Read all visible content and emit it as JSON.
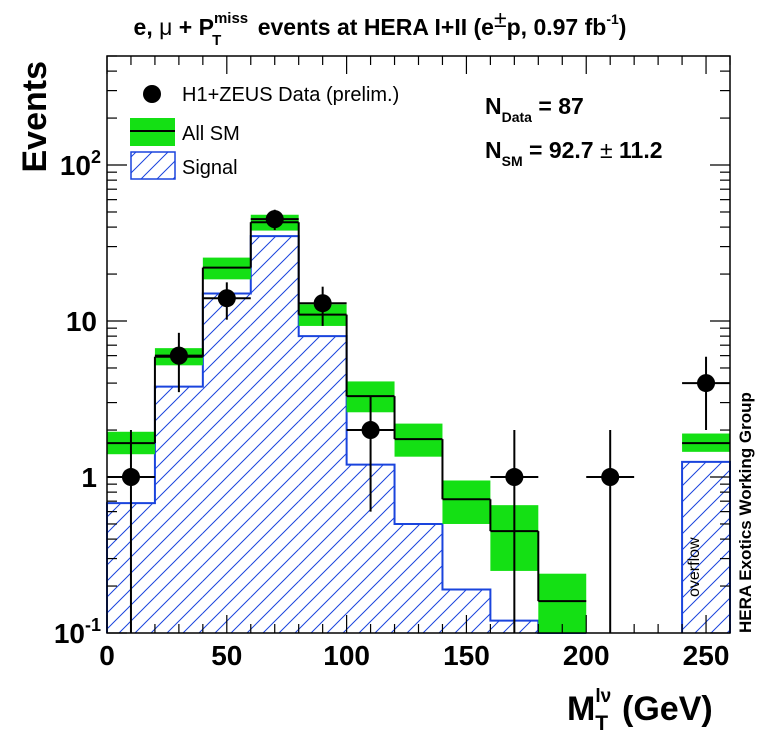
{
  "chart_data": {
    "type": "bar",
    "title": {
      "pre": "e,",
      "mu": "μ",
      "plus": " + P",
      "sup": "miss",
      "sub": "T",
      "post": " events at HERA I+II (e",
      "pm": "±",
      "post2": "p, 0.97 fb",
      "sup2": "-1",
      "close": ")"
    },
    "ylabel": "Events",
    "xlabel": {
      "main": "M",
      "sup": "lν",
      "sub": "T",
      "unit": "(GeV)"
    },
    "yscale": "log",
    "ylim": [
      0.1,
      500
    ],
    "xlim": [
      0,
      260
    ],
    "x_ticks": [
      {
        "value": 0,
        "label": "0"
      },
      {
        "value": 50,
        "label": "50"
      },
      {
        "value": 100,
        "label": "100"
      },
      {
        "value": 150,
        "label": "150"
      },
      {
        "value": 200,
        "label": "200"
      },
      {
        "value": 250,
        "label": "250"
      }
    ],
    "y_ticks": [
      {
        "value": 0.1,
        "base": "10",
        "exp": "-1"
      },
      {
        "value": 1,
        "base": "1",
        "exp": ""
      },
      {
        "value": 10,
        "base": "10",
        "exp": ""
      },
      {
        "value": 100,
        "base": "10",
        "exp": "2"
      }
    ],
    "bins": [
      [
        0,
        20
      ],
      [
        20,
        40
      ],
      [
        40,
        60
      ],
      [
        60,
        80
      ],
      [
        80,
        100
      ],
      [
        100,
        120
      ],
      [
        120,
        140
      ],
      [
        140,
        160
      ],
      [
        160,
        180
      ],
      [
        180,
        200
      ],
      [
        240,
        260
      ]
    ],
    "series": [
      {
        "name": "All SM",
        "kind": "line_band",
        "color": "#000000",
        "band_color": "#14e014",
        "values": [
          1.65,
          5.9,
          22.0,
          43.0,
          11.0,
          3.3,
          1.75,
          0.72,
          0.45,
          0.16,
          1.65
        ],
        "band_low": [
          1.4,
          5.2,
          18.5,
          38.0,
          9.3,
          2.6,
          1.35,
          0.5,
          0.25,
          0.1,
          1.45
        ],
        "band_high": [
          1.95,
          6.7,
          25.5,
          48.0,
          12.8,
          4.1,
          2.2,
          0.95,
          0.66,
          0.24,
          1.9
        ]
      },
      {
        "name": "Signal",
        "kind": "hatched",
        "color": "#1a44dd",
        "values": [
          0.68,
          3.8,
          15.0,
          35.0,
          8.0,
          1.2,
          0.5,
          0.19,
          0.12,
          0.1,
          1.25
        ]
      },
      {
        "name": "H1+ZEUS Data (prelim.)",
        "kind": "points",
        "color": "#000000",
        "x": [
          10,
          30,
          50,
          70,
          90,
          110,
          170,
          210,
          250
        ],
        "y": [
          1,
          6,
          14,
          45,
          13,
          2,
          1,
          1,
          4
        ],
        "err_low": [
          0.9,
          2.5,
          3.8,
          6.7,
          3.7,
          1.4,
          0.9,
          0.9,
          2.0
        ],
        "err_high": [
          1.0,
          2.4,
          3.7,
          6.7,
          3.6,
          1.3,
          1.0,
          1.0,
          1.9
        ],
        "xerr": 10
      }
    ],
    "legend": {
      "placement": "top-left",
      "data": "H1+ZEUS Data (prelim.)",
      "sm": "All SM",
      "signal": "Signal"
    },
    "annotations": {
      "n_data": {
        "main": "N",
        "sub": "Data",
        "rest": " = 87"
      },
      "n_sm": {
        "main": "N",
        "sub": "SM",
        "rest": " = 92.7 ",
        "pm": "±",
        "tail": " 11.2"
      },
      "overflow": "overflow",
      "group": "HERA Exotics Working Group"
    }
  }
}
